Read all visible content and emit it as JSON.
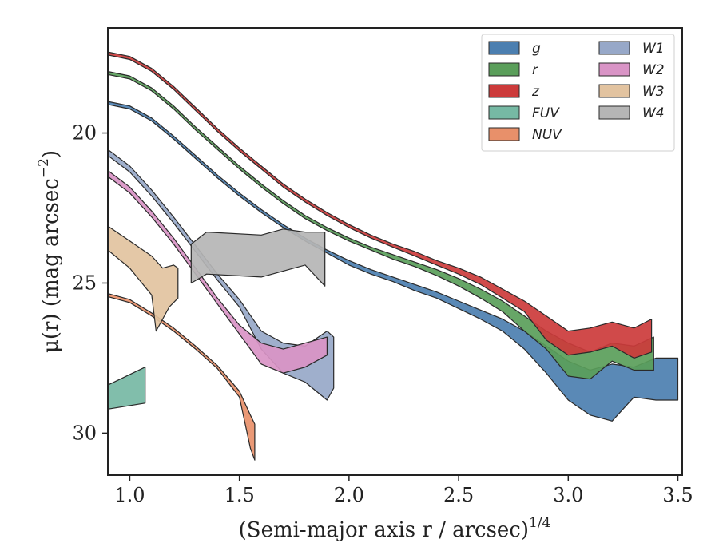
{
  "chart_data": {
    "type": "area",
    "title": "",
    "xlabel": "(Semi-major axis r / arcsec)",
    "xlabel_exponent": "1/4",
    "ylabel": "μ(r) (mag arcsec",
    "ylabel_exponent": "−2",
    "ylabel_close": ")",
    "xlim": [
      0.9,
      3.52
    ],
    "ylim": [
      31.4,
      16.5
    ],
    "y_inverted": true,
    "x_ticks": [
      1.0,
      1.5,
      2.0,
      2.5,
      3.0,
      3.5
    ],
    "x_tick_labels": [
      "1.0",
      "1.5",
      "2.0",
      "2.5",
      "3.0",
      "3.5"
    ],
    "y_ticks": [
      20,
      25,
      30
    ],
    "y_tick_labels": [
      "20",
      "25",
      "30"
    ],
    "grid": false,
    "legend_position": "top-right",
    "legend_columns": 2,
    "series": [
      {
        "name": "g",
        "color": "#4c7fb0",
        "upper": [
          [
            0.9,
            18.95
          ],
          [
            1.0,
            19.1
          ],
          [
            1.1,
            19.5
          ],
          [
            1.2,
            20.1
          ],
          [
            1.3,
            20.75
          ],
          [
            1.4,
            21.4
          ],
          [
            1.5,
            22.0
          ],
          [
            1.6,
            22.55
          ],
          [
            1.7,
            23.05
          ],
          [
            1.8,
            23.5
          ],
          [
            1.9,
            23.9
          ],
          [
            2.0,
            24.25
          ],
          [
            2.1,
            24.55
          ],
          [
            2.2,
            24.8
          ],
          [
            2.3,
            25.05
          ],
          [
            2.4,
            25.3
          ],
          [
            2.5,
            25.6
          ],
          [
            2.6,
            25.9
          ],
          [
            2.7,
            26.2
          ],
          [
            2.8,
            26.6
          ],
          [
            2.9,
            27.1
          ],
          [
            3.0,
            27.6
          ],
          [
            3.1,
            27.9
          ],
          [
            3.2,
            27.7
          ],
          [
            3.3,
            27.8
          ],
          [
            3.4,
            27.5
          ],
          [
            3.5,
            27.5
          ]
        ],
        "lower": [
          [
            0.9,
            19.05
          ],
          [
            1.0,
            19.2
          ],
          [
            1.1,
            19.6
          ],
          [
            1.2,
            20.2
          ],
          [
            1.3,
            20.85
          ],
          [
            1.4,
            21.5
          ],
          [
            1.5,
            22.1
          ],
          [
            1.6,
            22.65
          ],
          [
            1.7,
            23.15
          ],
          [
            1.8,
            23.6
          ],
          [
            1.9,
            24.0
          ],
          [
            2.0,
            24.4
          ],
          [
            2.1,
            24.7
          ],
          [
            2.2,
            24.95
          ],
          [
            2.3,
            25.25
          ],
          [
            2.4,
            25.5
          ],
          [
            2.5,
            25.85
          ],
          [
            2.6,
            26.2
          ],
          [
            2.7,
            26.6
          ],
          [
            2.8,
            27.2
          ],
          [
            2.9,
            28.0
          ],
          [
            3.0,
            28.9
          ],
          [
            3.1,
            29.4
          ],
          [
            3.2,
            29.6
          ],
          [
            3.3,
            28.8
          ],
          [
            3.4,
            28.9
          ],
          [
            3.5,
            28.9
          ]
        ]
      },
      {
        "name": "r",
        "color": "#5a9e5a",
        "upper": [
          [
            0.9,
            17.95
          ],
          [
            1.0,
            18.1
          ],
          [
            1.1,
            18.5
          ],
          [
            1.2,
            19.1
          ],
          [
            1.3,
            19.8
          ],
          [
            1.4,
            20.45
          ],
          [
            1.5,
            21.1
          ],
          [
            1.6,
            21.7
          ],
          [
            1.7,
            22.25
          ],
          [
            1.8,
            22.75
          ],
          [
            1.9,
            23.15
          ],
          [
            2.0,
            23.5
          ],
          [
            2.1,
            23.8
          ],
          [
            2.2,
            24.05
          ],
          [
            2.3,
            24.3
          ],
          [
            2.4,
            24.55
          ],
          [
            2.5,
            24.85
          ],
          [
            2.6,
            25.2
          ],
          [
            2.7,
            25.6
          ],
          [
            2.8,
            26.1
          ],
          [
            2.9,
            26.6
          ],
          [
            3.0,
            27.0
          ],
          [
            3.1,
            27.3
          ],
          [
            3.2,
            27.0
          ],
          [
            3.3,
            27.1
          ],
          [
            3.39,
            26.8
          ]
        ],
        "lower": [
          [
            0.9,
            18.05
          ],
          [
            1.0,
            18.2
          ],
          [
            1.1,
            18.6
          ],
          [
            1.2,
            19.2
          ],
          [
            1.3,
            19.9
          ],
          [
            1.4,
            20.55
          ],
          [
            1.5,
            21.2
          ],
          [
            1.6,
            21.8
          ],
          [
            1.7,
            22.35
          ],
          [
            1.8,
            22.85
          ],
          [
            1.9,
            23.25
          ],
          [
            2.0,
            23.6
          ],
          [
            2.1,
            23.9
          ],
          [
            2.2,
            24.2
          ],
          [
            2.3,
            24.45
          ],
          [
            2.4,
            24.75
          ],
          [
            2.5,
            25.1
          ],
          [
            2.6,
            25.5
          ],
          [
            2.7,
            25.95
          ],
          [
            2.8,
            26.6
          ],
          [
            2.9,
            27.2
          ],
          [
            3.0,
            28.1
          ],
          [
            3.1,
            28.2
          ],
          [
            3.2,
            27.6
          ],
          [
            3.3,
            27.9
          ],
          [
            3.39,
            27.9
          ]
        ]
      },
      {
        "name": "z",
        "color": "#cc3b3b",
        "upper": [
          [
            0.9,
            17.3
          ],
          [
            1.0,
            17.45
          ],
          [
            1.1,
            17.85
          ],
          [
            1.2,
            18.45
          ],
          [
            1.3,
            19.15
          ],
          [
            1.4,
            19.85
          ],
          [
            1.5,
            20.5
          ],
          [
            1.6,
            21.1
          ],
          [
            1.7,
            21.7
          ],
          [
            1.8,
            22.2
          ],
          [
            1.9,
            22.65
          ],
          [
            2.0,
            23.05
          ],
          [
            2.1,
            23.4
          ],
          [
            2.2,
            23.7
          ],
          [
            2.3,
            23.95
          ],
          [
            2.4,
            24.25
          ],
          [
            2.5,
            24.5
          ],
          [
            2.6,
            24.8
          ],
          [
            2.7,
            25.2
          ],
          [
            2.8,
            25.6
          ],
          [
            2.9,
            26.1
          ],
          [
            3.0,
            26.6
          ],
          [
            3.1,
            26.5
          ],
          [
            3.2,
            26.3
          ],
          [
            3.3,
            26.5
          ],
          [
            3.38,
            26.2
          ]
        ],
        "lower": [
          [
            0.9,
            17.4
          ],
          [
            1.0,
            17.55
          ],
          [
            1.1,
            17.95
          ],
          [
            1.2,
            18.55
          ],
          [
            1.3,
            19.25
          ],
          [
            1.4,
            19.95
          ],
          [
            1.5,
            20.6
          ],
          [
            1.6,
            21.2
          ],
          [
            1.7,
            21.8
          ],
          [
            1.8,
            22.3
          ],
          [
            1.9,
            22.75
          ],
          [
            2.0,
            23.15
          ],
          [
            2.1,
            23.5
          ],
          [
            2.2,
            23.8
          ],
          [
            2.3,
            24.1
          ],
          [
            2.4,
            24.4
          ],
          [
            2.5,
            24.7
          ],
          [
            2.6,
            25.05
          ],
          [
            2.7,
            25.5
          ],
          [
            2.8,
            25.95
          ],
          [
            2.9,
            26.9
          ],
          [
            3.0,
            27.4
          ],
          [
            3.1,
            27.3
          ],
          [
            3.2,
            27.1
          ],
          [
            3.3,
            27.5
          ],
          [
            3.38,
            27.3
          ]
        ]
      },
      {
        "name": "FUV",
        "color": "#76b9a4",
        "upper": [
          [
            0.9,
            28.4
          ],
          [
            1.07,
            27.8
          ]
        ],
        "lower": [
          [
            0.9,
            29.2
          ],
          [
            1.07,
            29.0
          ]
        ]
      },
      {
        "name": "NUV",
        "color": "#e8906a",
        "upper": [
          [
            0.9,
            25.35
          ],
          [
            1.0,
            25.55
          ],
          [
            1.1,
            26.0
          ],
          [
            1.2,
            26.5
          ],
          [
            1.3,
            27.1
          ],
          [
            1.4,
            27.75
          ],
          [
            1.5,
            28.6
          ],
          [
            1.55,
            29.4
          ],
          [
            1.57,
            29.7
          ]
        ],
        "lower": [
          [
            0.9,
            25.45
          ],
          [
            1.0,
            25.65
          ],
          [
            1.1,
            26.1
          ],
          [
            1.2,
            26.6
          ],
          [
            1.3,
            27.2
          ],
          [
            1.4,
            27.85
          ],
          [
            1.5,
            28.8
          ],
          [
            1.55,
            30.5
          ],
          [
            1.57,
            30.9
          ]
        ]
      },
      {
        "name": "W1",
        "color": "#97a8c8",
        "upper": [
          [
            0.9,
            20.55
          ],
          [
            1.0,
            21.1
          ],
          [
            1.1,
            21.9
          ],
          [
            1.2,
            22.8
          ],
          [
            1.3,
            23.75
          ],
          [
            1.4,
            24.7
          ],
          [
            1.5,
            25.55
          ],
          [
            1.6,
            26.6
          ],
          [
            1.7,
            27.0
          ],
          [
            1.8,
            27.1
          ],
          [
            1.9,
            26.6
          ],
          [
            1.93,
            26.8
          ]
        ],
        "lower": [
          [
            0.9,
            20.75
          ],
          [
            1.0,
            21.3
          ],
          [
            1.1,
            22.1
          ],
          [
            1.2,
            23.0
          ],
          [
            1.3,
            23.95
          ],
          [
            1.4,
            24.9
          ],
          [
            1.5,
            25.8
          ],
          [
            1.6,
            27.2
          ],
          [
            1.7,
            28.0
          ],
          [
            1.8,
            28.3
          ],
          [
            1.9,
            28.9
          ],
          [
            1.93,
            28.5
          ]
        ]
      },
      {
        "name": "W2",
        "color": "#d994c6",
        "upper": [
          [
            0.9,
            21.25
          ],
          [
            1.0,
            21.8
          ],
          [
            1.1,
            22.6
          ],
          [
            1.2,
            23.5
          ],
          [
            1.3,
            24.5
          ],
          [
            1.4,
            25.5
          ],
          [
            1.5,
            26.4
          ],
          [
            1.6,
            27.0
          ],
          [
            1.7,
            27.2
          ],
          [
            1.8,
            27.0
          ],
          [
            1.9,
            26.8
          ]
        ],
        "lower": [
          [
            0.9,
            21.45
          ],
          [
            1.0,
            22.0
          ],
          [
            1.1,
            22.8
          ],
          [
            1.2,
            23.7
          ],
          [
            1.3,
            24.7
          ],
          [
            1.4,
            25.7
          ],
          [
            1.5,
            26.7
          ],
          [
            1.6,
            27.7
          ],
          [
            1.7,
            28.0
          ],
          [
            1.8,
            27.8
          ],
          [
            1.9,
            27.4
          ]
        ]
      },
      {
        "name": "W3",
        "color": "#e2c3a0",
        "upper": [
          [
            0.9,
            23.1
          ],
          [
            1.0,
            23.6
          ],
          [
            1.1,
            24.1
          ],
          [
            1.15,
            24.5
          ],
          [
            1.2,
            24.4
          ],
          [
            1.22,
            24.5
          ]
        ],
        "lower": [
          [
            0.9,
            23.9
          ],
          [
            1.0,
            24.5
          ],
          [
            1.1,
            25.4
          ],
          [
            1.12,
            26.6
          ],
          [
            1.18,
            25.8
          ],
          [
            1.22,
            25.5
          ]
        ]
      },
      {
        "name": "W4",
        "color": "#b5b5b5",
        "upper": [
          [
            1.28,
            23.7
          ],
          [
            1.35,
            23.3
          ],
          [
            1.6,
            23.4
          ],
          [
            1.7,
            23.2
          ],
          [
            1.8,
            23.3
          ],
          [
            1.89,
            23.3
          ]
        ],
        "lower": [
          [
            1.28,
            25.0
          ],
          [
            1.35,
            24.7
          ],
          [
            1.6,
            24.8
          ],
          [
            1.7,
            24.6
          ],
          [
            1.8,
            24.4
          ],
          [
            1.89,
            25.1
          ]
        ]
      }
    ]
  }
}
